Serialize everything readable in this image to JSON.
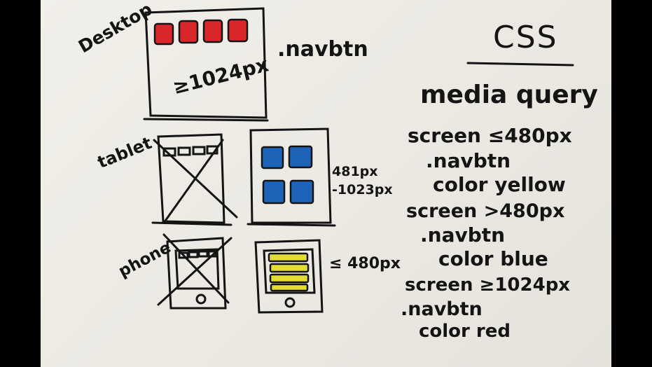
{
  "whiteboard": {
    "left_labels": {
      "desktop": "Desktop",
      "tablet": "tablet",
      "phone": "phone"
    },
    "desktop_width": "≥1024px",
    "class_name": ".navbtn",
    "tablet_range_line1": "481px",
    "tablet_range_line2": "-1023px",
    "phone_range": "≤ 480px",
    "right_panel": {
      "title": "CSS",
      "subtitle": "media query",
      "rules": [
        {
          "screen": "screen ≤480px",
          "selector": ".navbtn",
          "declaration": "color yellow"
        },
        {
          "screen": "screen >480px",
          "selector": ".navbtn",
          "declaration": "color blue"
        },
        {
          "screen": "screen ≥1024px",
          "selector": ".navbtn",
          "declaration": "color red"
        }
      ]
    },
    "colors": {
      "ink": "#141414",
      "red": "#d8262b",
      "blue": "#1d64b8",
      "yellow": "#e3dc33"
    }
  }
}
